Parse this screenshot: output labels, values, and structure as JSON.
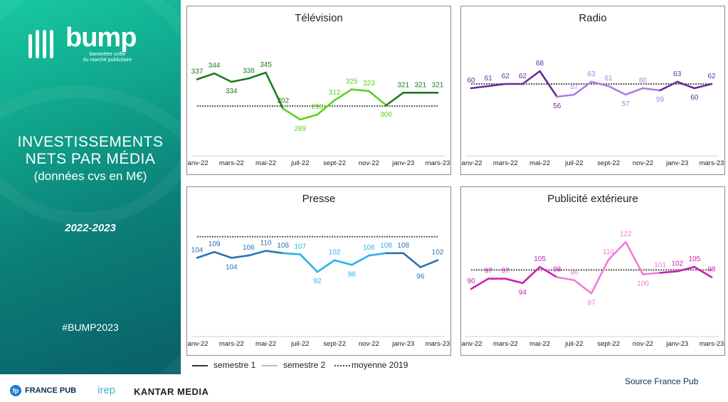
{
  "sidebar": {
    "logo_text": "bump",
    "logo_subtitle_1": "baromètre unifié",
    "logo_subtitle_2": "du marché publicitaire",
    "title_line1": "INVESTISSEMENTS",
    "title_line2": "NETS PAR MÉDIA",
    "title_line3": "(données cvs en M€)",
    "years": "2022-2023",
    "hashtag": "#BUMP2023"
  },
  "legend": {
    "s1": "semestre 1",
    "s2": "semestre 2",
    "avg": "moyenne 2019"
  },
  "source": "Source France Pub",
  "footer": {
    "france_pub_icon": "fp",
    "france_pub": "FRANCE PUB",
    "irep": "irep",
    "kantar": "KANTAR MEDIA"
  },
  "chart_data": [
    {
      "type": "line",
      "title": "Télévision",
      "x_tick_labels": [
        "janv-22",
        "mars-22",
        "mai-22",
        "juil-22",
        "sept-22",
        "nov-22",
        "janv-23",
        "mars-23"
      ],
      "x": [
        "janv-22",
        "févr-22",
        "mars-22",
        "avr-22",
        "mai-22",
        "juin-22",
        "juil-22",
        "août-22",
        "sept-22",
        "oct-22",
        "nov-22",
        "déc-22",
        "janv-23",
        "févr-23",
        "mars-23"
      ],
      "values": [
        337,
        344,
        334,
        338,
        345,
        302,
        289,
        295,
        312,
        325,
        323,
        306,
        321,
        321,
        321
      ],
      "labels": [
        "337",
        "344",
        "334",
        "338",
        "345",
        "302",
        "289",
        "295",
        "312",
        "325",
        "323",
        "306",
        "321",
        "321",
        "321"
      ],
      "average_2019": 305,
      "colors": {
        "s1": "#1e7a1e",
        "s2": "#5cd11d"
      },
      "ylim": [
        250,
        390
      ]
    },
    {
      "type": "line",
      "title": "Radio",
      "x_tick_labels": [
        "janv-22",
        "mars-22",
        "mai-22",
        "juil-22",
        "sept-22",
        "nov-22",
        "janv-23",
        "mars-23"
      ],
      "x": [
        "janv-22",
        "févr-22",
        "mars-22",
        "avr-22",
        "mai-22",
        "juin-22",
        "juil-22",
        "août-22",
        "sept-22",
        "oct-22",
        "nov-22",
        "déc-22",
        "janv-23",
        "févr-23",
        "mars-23"
      ],
      "values": [
        60,
        61,
        62,
        62,
        68,
        56,
        57,
        63,
        61,
        57,
        60,
        59,
        63,
        60,
        62
      ],
      "labels": [
        "60",
        "61",
        "62",
        "62",
        "68",
        "56",
        "57",
        "63",
        "61",
        "57",
        "60",
        "59",
        "63",
        "60",
        "62"
      ],
      "average_2019": 62,
      "colors": {
        "s1": "#6a2a98",
        "s2": "#a77fe0"
      },
      "ylim": [
        30,
        85
      ]
    },
    {
      "type": "line",
      "title": "Presse",
      "x_tick_labels": [
        "janv-22",
        "mars-22",
        "mai-22",
        "juil-22",
        "sept-22",
        "nov-22",
        "janv-23",
        "mars-23"
      ],
      "x": [
        "janv-22",
        "févr-22",
        "mars-22",
        "avr-22",
        "mai-22",
        "juin-22",
        "juil-22",
        "août-22",
        "sept-22",
        "oct-22",
        "nov-22",
        "déc-22",
        "janv-23",
        "févr-23",
        "mars-23"
      ],
      "values": [
        104,
        109,
        104,
        106,
        110,
        108,
        107,
        92,
        102,
        98,
        106,
        108,
        108,
        96,
        102
      ],
      "labels": [
        "104",
        "109",
        "104",
        "106",
        "110",
        "108",
        "107",
        "92",
        "102",
        "98",
        "106",
        "108",
        "108",
        "96",
        "102"
      ],
      "average_2019": 122,
      "colors": {
        "s1": "#2a72b5",
        "s2": "#29b2e8"
      },
      "ylim": [
        40,
        140
      ]
    },
    {
      "type": "line",
      "title": "Publicité extérieure",
      "x_tick_labels": [
        "janv-22",
        "mars-22",
        "mai-22",
        "juil-22",
        "sept-22",
        "nov-22",
        "janv-23",
        "mars-23"
      ],
      "x": [
        "janv-22",
        "févr-22",
        "mars-22",
        "avr-22",
        "mai-22",
        "juin-22",
        "juil-22",
        "août-22",
        "sept-22",
        "oct-22",
        "nov-22",
        "déc-22",
        "janv-23",
        "févr-23",
        "mars-23"
      ],
      "values": [
        90,
        97,
        97,
        94,
        105,
        98,
        96,
        87,
        110,
        122,
        100,
        101,
        102,
        105,
        98
      ],
      "labels": [
        "90",
        "97",
        "97",
        "94",
        "105",
        "98",
        "96",
        "87",
        "110",
        "122",
        "100",
        "101",
        "102",
        "105",
        "98"
      ],
      "average_2019": 103,
      "colors": {
        "s1": "#cc1fb5",
        "s2": "#f27ad6"
      },
      "ylim": [
        60,
        140
      ]
    }
  ]
}
